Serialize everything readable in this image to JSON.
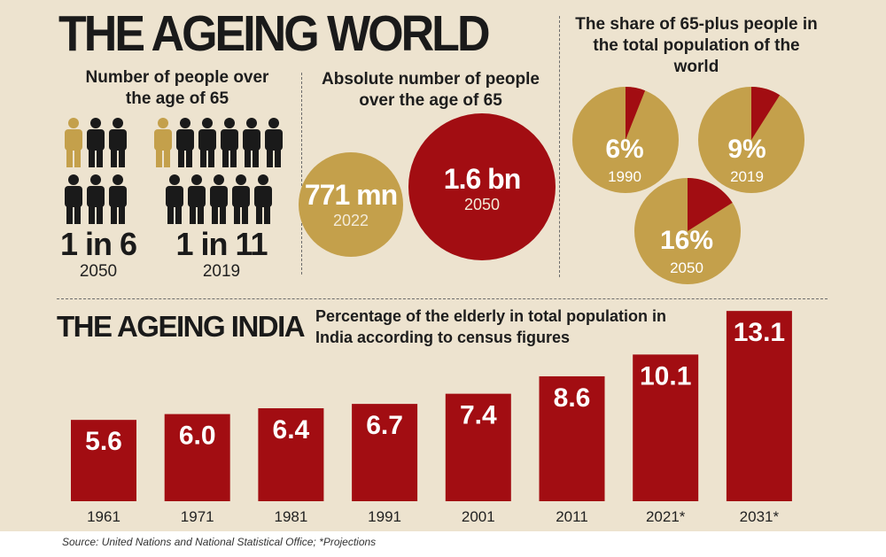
{
  "header": {
    "title": "THE AGEING WORLD"
  },
  "people_panel": {
    "heading": "Number of people over the age of 65",
    "groups": [
      {
        "ratio": "1 in 6",
        "year": "2050"
      },
      {
        "ratio": "1 in 11",
        "year": "2019"
      }
    ],
    "colors": {
      "highlight": "#c4a04b",
      "base": "#1a1a1a"
    }
  },
  "absolute_panel": {
    "heading": "Absolute number of people over the age of 65",
    "items": [
      {
        "value": "771 mn",
        "year": "2022",
        "color": "#c4a04b"
      },
      {
        "value": "1.6 bn",
        "year": "2050",
        "color": "#a20d12"
      }
    ]
  },
  "share_panel": {
    "heading": "The share of 65-plus people in the total population of the world",
    "pies": [
      {
        "label": "6%",
        "year": "1990",
        "share": 6
      },
      {
        "label": "9%",
        "year": "2019",
        "share": 9
      },
      {
        "label": "16%",
        "year": "2050",
        "share": 16
      }
    ],
    "colors": {
      "pie": "#c4a04b",
      "slice": "#a20d12"
    }
  },
  "india": {
    "title": "THE AGEING INDIA",
    "heading": "Percentage of the elderly in total population in India according to census figures"
  },
  "chart_data": {
    "type": "bar",
    "title": "Percentage of the elderly in total population in India according to census figures",
    "categories": [
      "1961",
      "1971",
      "1981",
      "1991",
      "2001",
      "2011",
      "2021*",
      "2031*"
    ],
    "values": [
      5.6,
      6.0,
      6.4,
      6.7,
      7.4,
      8.6,
      10.1,
      13.1
    ],
    "value_labels": [
      "5.6",
      "6.0",
      "6.4",
      "6.7",
      "7.4",
      "8.6",
      "10.1",
      "13.1"
    ],
    "color": "#a20d12",
    "xlabel": "",
    "ylabel": ""
  },
  "footer": {
    "source": "Source: United Nations and National Statistical Office; *Projections"
  }
}
